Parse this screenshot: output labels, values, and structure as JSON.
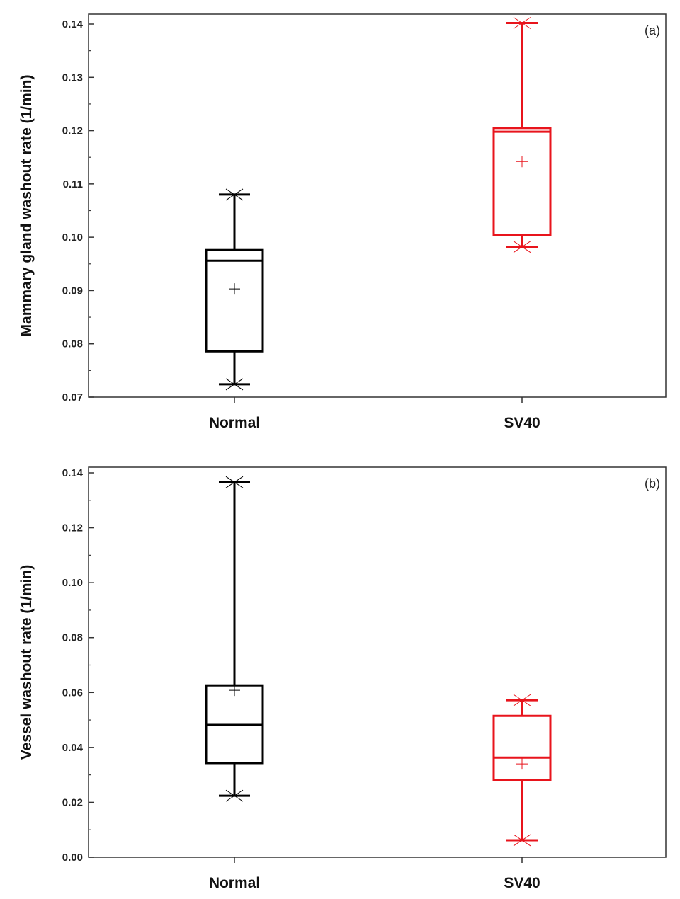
{
  "chart_data": [
    {
      "type": "box",
      "panel_label": "(a)",
      "ylabel": "Mammary gland washout rate (1/min)",
      "ylim": [
        0.07,
        0.14
      ],
      "yticks": [
        "0.07",
        "0.08",
        "0.09",
        "0.10",
        "0.11",
        "0.12",
        "0.13",
        "0.14"
      ],
      "categories": [
        "Normal",
        "SV40"
      ],
      "grid": false,
      "boxes": [
        {
          "category": "Normal",
          "color": "#000000",
          "min": 0.0724,
          "q1": 0.0786,
          "median": 0.0956,
          "q3": 0.0976,
          "max": 0.108,
          "mean": 0.0903
        },
        {
          "category": "SV40",
          "color": "#e8141c",
          "min": 0.0982,
          "q1": 0.1004,
          "median": 0.1198,
          "q3": 0.1205,
          "max": 0.1402,
          "mean": 0.1142
        }
      ]
    },
    {
      "type": "box",
      "panel_label": "(b)",
      "ylabel": "Vessel washout rate (1/min)",
      "ylim": [
        0.0,
        0.14
      ],
      "yticks": [
        "0.00",
        "0.02",
        "0.04",
        "0.06",
        "0.08",
        "0.10",
        "0.12",
        "0.14"
      ],
      "categories": [
        "Normal",
        "SV40"
      ],
      "grid": false,
      "boxes": [
        {
          "category": "Normal",
          "color": "#000000",
          "min": 0.0224,
          "q1": 0.0343,
          "median": 0.0482,
          "q3": 0.0626,
          "max": 0.1366,
          "mean": 0.0608
        },
        {
          "category": "SV40",
          "color": "#e8141c",
          "min": 0.0062,
          "q1": 0.0281,
          "median": 0.0363,
          "q3": 0.0515,
          "max": 0.0572,
          "mean": 0.034
        }
      ]
    }
  ]
}
